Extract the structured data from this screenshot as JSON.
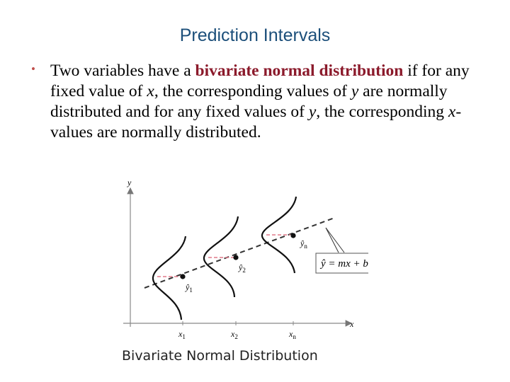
{
  "slide": {
    "title": "Prediction Intervals",
    "bullet": {
      "t1": "Two variables have a ",
      "t2": "bivariate normal distribution",
      "t3": " if for any fixed value of ",
      "t4": "x",
      "t5": ", the corresponding values of ",
      "t6": "y",
      "t7": " are normally distributed and for any fixed values of ",
      "t8": "y",
      "t9": ", the corresponding ",
      "t10": "x",
      "t11": "-values are normally distributed."
    },
    "highlight_color": "#8b1a2b",
    "title_color": "#1c4f7a"
  },
  "figure": {
    "axis_x": "x",
    "axis_y": "y",
    "tick_x1": "x",
    "tick_x1_sub": "1",
    "tick_x2": "x",
    "tick_x2_sub": "2",
    "tick_xn": "x",
    "tick_xn_sub": "n",
    "yhat1": "ŷ",
    "yhat1_sub": "1",
    "yhat2": "ŷ",
    "yhat2_sub": "2",
    "yhatn": "ŷ",
    "yhatn_sub": "n",
    "equation": "ŷ = mx + b",
    "caption": "Bivariate Normal Distribution",
    "dash_color": "#e07a8a"
  }
}
